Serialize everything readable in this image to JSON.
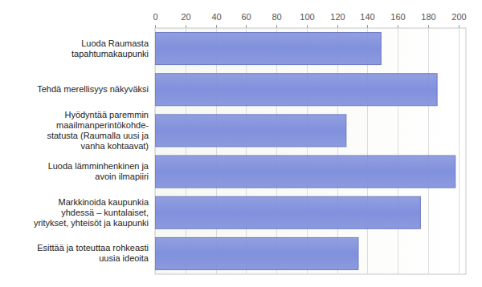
{
  "chart_data": {
    "type": "bar",
    "orientation": "horizontal",
    "categories": [
      "Luoda Raumasta tapahtumakaupunki",
      "Tehdä merellisyys näkyväksi",
      "Hyödyntää paremmin maailmanperintökohde-statusta (Raumalla uusi ja vanha kohtaavat)",
      "Luoda lämminhenkinen ja avoin ilmapiiri",
      "Markkinoida kaupunkia yhdessä – kuntalaiset, yritykset, yhteisöt ja kaupunki",
      "Esittää ja toteuttaa rohkeasti uusia ideoita"
    ],
    "values": [
      149,
      186,
      126,
      198,
      175,
      134
    ],
    "color": "#8090dc",
    "xlim": [
      0,
      205
    ],
    "xticks": [
      0,
      20,
      40,
      60,
      80,
      100,
      120,
      140,
      160,
      180,
      200
    ],
    "grid": true
  }
}
